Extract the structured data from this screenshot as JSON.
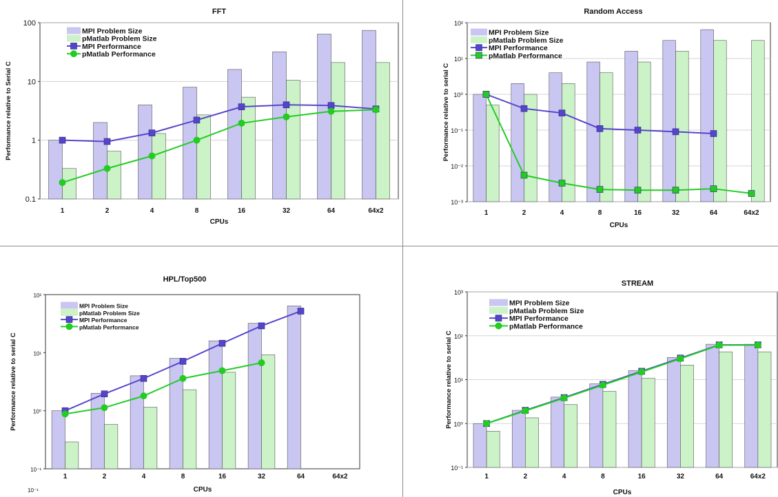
{
  "chart_data": [
    {
      "type": "bar",
      "title": "FFT",
      "xlabel": "CPUs",
      "ylabel": "Performance relative to Serial C",
      "categories": [
        "1",
        "2",
        "4",
        "8",
        "16",
        "32",
        "64",
        "64x2"
      ],
      "y_scale": "log",
      "ylim": [
        0.1,
        100
      ],
      "y_tick_labels": [
        "100",
        "10",
        "1",
        "0.1"
      ],
      "grid": true,
      "legend_position": "top-left",
      "bars": [
        {
          "name": "MPI Problem Size",
          "color": "#c9c6f2",
          "values": [
            1,
            2,
            4,
            8,
            16,
            32,
            64,
            74
          ]
        },
        {
          "name": "pMatlab Problem Size",
          "color": "#ccf2c8",
          "values": [
            0.33,
            0.65,
            1.3,
            2.7,
            5.4,
            10.5,
            21,
            21
          ]
        }
      ],
      "lines": [
        {
          "name": "MPI Performance",
          "color": "#5544cc",
          "marker": "square",
          "values": [
            1.0,
            0.95,
            1.33,
            2.2,
            3.7,
            4.0,
            3.9,
            3.4
          ]
        },
        {
          "name": "pMatlab Performance",
          "color": "#22cc22",
          "marker": "circle",
          "values": [
            0.19,
            0.33,
            0.54,
            1.0,
            1.95,
            2.5,
            3.1,
            3.3
          ]
        }
      ]
    },
    {
      "type": "bar",
      "title": "Random Access",
      "xlabel": "CPUs",
      "ylabel": "Performance relative to serial C",
      "categories": [
        "1",
        "2",
        "4",
        "8",
        "16",
        "32",
        "64",
        "64x2"
      ],
      "y_scale": "log",
      "ylim": [
        0.001,
        100
      ],
      "y_tick_labels": [
        "10²",
        "10¹",
        "10⁰",
        "10⁻¹",
        "10⁻²",
        "10⁻³"
      ],
      "grid": true,
      "legend_position": "top-left",
      "bars": [
        {
          "name": "MPI Problem Size",
          "color": "#c9c6f2",
          "values": [
            1,
            2,
            4,
            8,
            16,
            32,
            64,
            null
          ]
        },
        {
          "name": "pMatlab Problem Size",
          "color": "#ccf2c8",
          "values": [
            0.5,
            1,
            2,
            4,
            8,
            16,
            32,
            32
          ]
        }
      ],
      "lines": [
        {
          "name": "MPI Performance",
          "color": "#5544cc",
          "marker": "square",
          "values": [
            1.0,
            0.4,
            0.3,
            0.11,
            0.1,
            0.09,
            0.08,
            null
          ]
        },
        {
          "name": "pMatlab Performance",
          "color": "#22cc22",
          "marker": "square",
          "values": [
            1.0,
            0.0055,
            0.0033,
            0.0022,
            0.0021,
            0.0021,
            0.0023,
            0.0017
          ]
        }
      ]
    },
    {
      "type": "bar",
      "title": "HPL/Top500",
      "xlabel": "CPUs",
      "ylabel": "Performance relative to serial C",
      "categories": [
        "1",
        "2",
        "4",
        "8",
        "16",
        "32",
        "64",
        "64x2"
      ],
      "y_scale": "log",
      "ylim": [
        0.1,
        100
      ],
      "y_tick_labels": [
        "10²",
        "10¹",
        "10⁰",
        "10⁻¹"
      ],
      "grid": false,
      "legend_position": "top-left",
      "bars": [
        {
          "name": "MPI Problem Size",
          "color": "#c9c6f2",
          "values": [
            1,
            2,
            4,
            8,
            16,
            32,
            64,
            null
          ]
        },
        {
          "name": "pMatlab Problem Size",
          "color": "#ccf2c8",
          "values": [
            0.29,
            0.58,
            1.15,
            2.3,
            4.6,
            9.2,
            null,
            null
          ]
        }
      ],
      "lines": [
        {
          "name": "MPI Performance",
          "color": "#5544cc",
          "marker": "square",
          "values": [
            1.0,
            1.95,
            3.6,
            7.1,
            14.5,
            29,
            52,
            null
          ]
        },
        {
          "name": "pMatlab Performance",
          "color": "#22cc22",
          "marker": "circle",
          "values": [
            0.88,
            1.13,
            1.8,
            3.6,
            4.9,
            6.7,
            null,
            null
          ]
        }
      ],
      "footnote": "10⁻¹"
    },
    {
      "type": "bar",
      "title": "STREAM",
      "xlabel": "CPUs",
      "ylabel": "Performance relative to serial C",
      "categories": [
        "1",
        "2",
        "4",
        "8",
        "16",
        "32",
        "64",
        "64x2"
      ],
      "y_scale": "log",
      "ylim": [
        0.1,
        1000
      ],
      "y_tick_labels": [
        "10³",
        "10²",
        "10¹",
        "10⁰",
        "10⁻¹"
      ],
      "grid": true,
      "legend_position": "top-left",
      "bars": [
        {
          "name": "MPI Problem Size",
          "color": "#c9c6f2",
          "values": [
            1,
            2,
            4,
            8,
            16,
            32,
            64,
            64
          ]
        },
        {
          "name": "pMatlab Problem Size",
          "color": "#ccf2c8",
          "values": [
            0.67,
            1.35,
            2.7,
            5.4,
            10.7,
            21.5,
            43,
            43
          ]
        }
      ],
      "lines": [
        {
          "name": "MPI Performance",
          "color": "#5544cc",
          "marker": "square",
          "values": [
            1.0,
            2.0,
            3.9,
            7.8,
            15.5,
            31,
            62,
            62
          ]
        },
        {
          "name": "pMatlab Performance",
          "color": "#22cc22",
          "marker": "circle",
          "values": [
            1.0,
            1.95,
            3.8,
            7.5,
            15,
            30,
            61,
            61
          ]
        }
      ]
    }
  ]
}
